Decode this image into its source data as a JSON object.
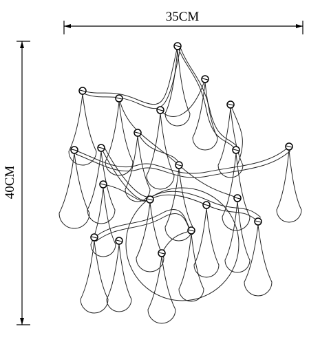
{
  "dimensions": {
    "width": "35CM",
    "height": "40CM"
  }
}
